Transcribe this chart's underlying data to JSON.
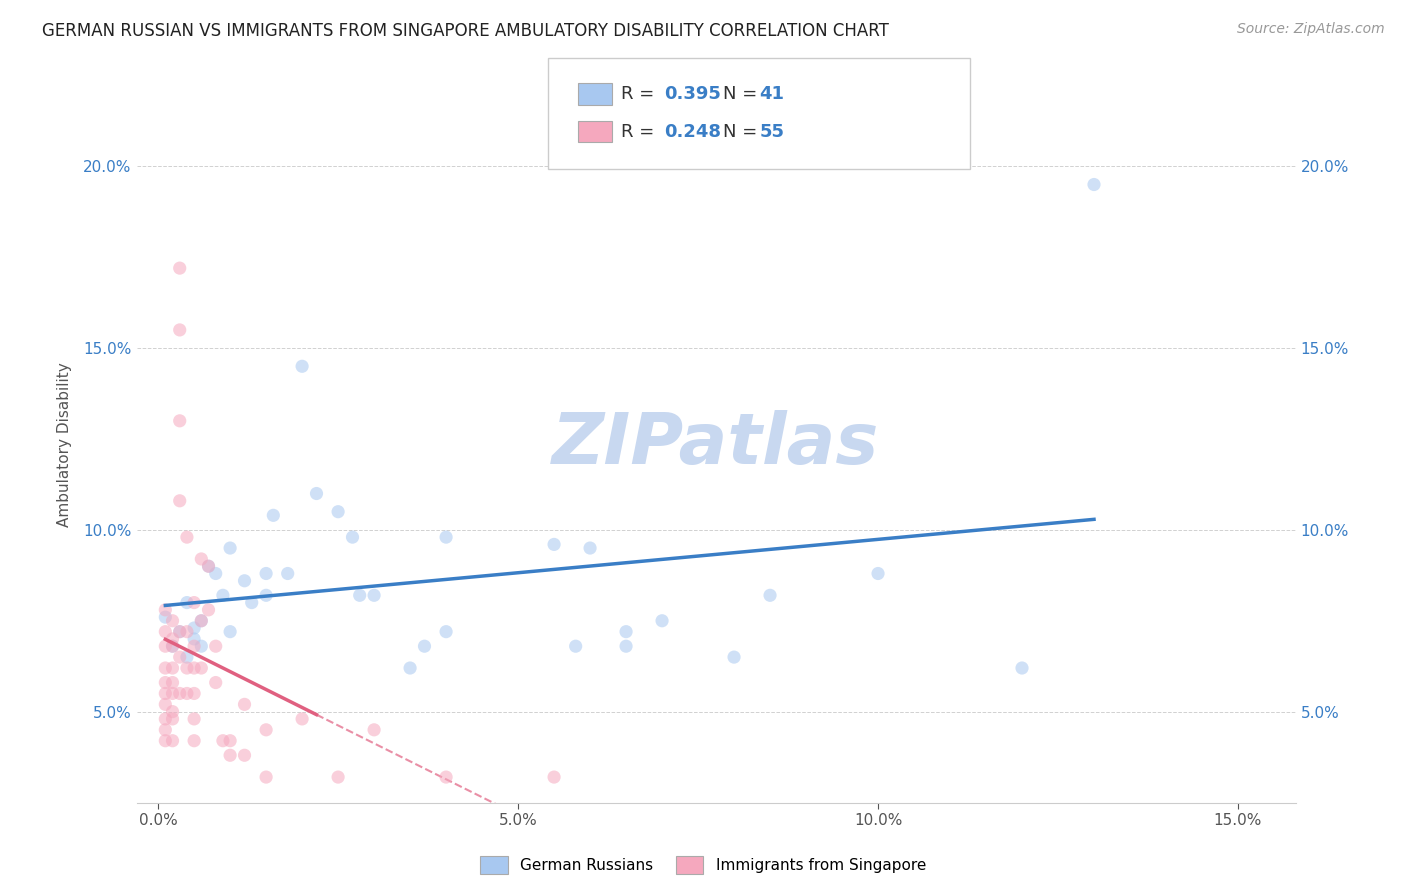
{
  "title": "GERMAN RUSSIAN VS IMMIGRANTS FROM SINGAPORE AMBULATORY DISABILITY CORRELATION CHART",
  "source": "Source: ZipAtlas.com",
  "ylabel": "Ambulatory Disability",
  "xlabel_vals": [
    0.0,
    0.05,
    0.1,
    0.15
  ],
  "ylabel_vals": [
    0.05,
    0.1,
    0.15,
    0.2
  ],
  "xlim": [
    -0.003,
    0.158
  ],
  "ylim": [
    0.025,
    0.222
  ],
  "blue_color": "#A8C8F0",
  "pink_color": "#F5A8BE",
  "blue_line_color": "#3A7EC6",
  "pink_line_color": "#E06080",
  "watermark": "ZIPatlas",
  "watermark_color": "#C8D8F0",
  "legend_label_blue": "German Russians",
  "legend_label_pink": "Immigrants from Singapore",
  "legend_text_color": "#3A7EC6",
  "blue_points": [
    [
      0.001,
      0.076
    ],
    [
      0.002,
      0.068
    ],
    [
      0.003,
      0.072
    ],
    [
      0.004,
      0.065
    ],
    [
      0.004,
      0.08
    ],
    [
      0.005,
      0.07
    ],
    [
      0.005,
      0.073
    ],
    [
      0.006,
      0.068
    ],
    [
      0.006,
      0.075
    ],
    [
      0.007,
      0.09
    ],
    [
      0.008,
      0.088
    ],
    [
      0.009,
      0.082
    ],
    [
      0.01,
      0.095
    ],
    [
      0.01,
      0.072
    ],
    [
      0.012,
      0.086
    ],
    [
      0.013,
      0.08
    ],
    [
      0.015,
      0.088
    ],
    [
      0.015,
      0.082
    ],
    [
      0.016,
      0.104
    ],
    [
      0.018,
      0.088
    ],
    [
      0.02,
      0.145
    ],
    [
      0.022,
      0.11
    ],
    [
      0.025,
      0.105
    ],
    [
      0.027,
      0.098
    ],
    [
      0.028,
      0.082
    ],
    [
      0.03,
      0.082
    ],
    [
      0.035,
      0.062
    ],
    [
      0.037,
      0.068
    ],
    [
      0.04,
      0.098
    ],
    [
      0.04,
      0.072
    ],
    [
      0.055,
      0.096
    ],
    [
      0.058,
      0.068
    ],
    [
      0.06,
      0.095
    ],
    [
      0.065,
      0.072
    ],
    [
      0.065,
      0.068
    ],
    [
      0.07,
      0.075
    ],
    [
      0.08,
      0.065
    ],
    [
      0.085,
      0.082
    ],
    [
      0.1,
      0.088
    ],
    [
      0.12,
      0.062
    ],
    [
      0.13,
      0.195
    ]
  ],
  "pink_points": [
    [
      0.001,
      0.078
    ],
    [
      0.001,
      0.072
    ],
    [
      0.001,
      0.068
    ],
    [
      0.001,
      0.062
    ],
    [
      0.001,
      0.058
    ],
    [
      0.001,
      0.055
    ],
    [
      0.001,
      0.052
    ],
    [
      0.001,
      0.048
    ],
    [
      0.001,
      0.045
    ],
    [
      0.001,
      0.042
    ],
    [
      0.002,
      0.075
    ],
    [
      0.002,
      0.07
    ],
    [
      0.002,
      0.068
    ],
    [
      0.002,
      0.062
    ],
    [
      0.002,
      0.058
    ],
    [
      0.002,
      0.055
    ],
    [
      0.002,
      0.05
    ],
    [
      0.002,
      0.048
    ],
    [
      0.002,
      0.042
    ],
    [
      0.003,
      0.172
    ],
    [
      0.003,
      0.155
    ],
    [
      0.003,
      0.13
    ],
    [
      0.003,
      0.108
    ],
    [
      0.003,
      0.072
    ],
    [
      0.003,
      0.065
    ],
    [
      0.003,
      0.055
    ],
    [
      0.004,
      0.098
    ],
    [
      0.004,
      0.072
    ],
    [
      0.004,
      0.062
    ],
    [
      0.004,
      0.055
    ],
    [
      0.005,
      0.08
    ],
    [
      0.005,
      0.068
    ],
    [
      0.005,
      0.062
    ],
    [
      0.005,
      0.055
    ],
    [
      0.005,
      0.048
    ],
    [
      0.005,
      0.042
    ],
    [
      0.006,
      0.092
    ],
    [
      0.006,
      0.075
    ],
    [
      0.006,
      0.062
    ],
    [
      0.007,
      0.09
    ],
    [
      0.007,
      0.078
    ],
    [
      0.008,
      0.068
    ],
    [
      0.008,
      0.058
    ],
    [
      0.009,
      0.042
    ],
    [
      0.01,
      0.042
    ],
    [
      0.01,
      0.038
    ],
    [
      0.012,
      0.052
    ],
    [
      0.012,
      0.038
    ],
    [
      0.015,
      0.045
    ],
    [
      0.015,
      0.032
    ],
    [
      0.02,
      0.048
    ],
    [
      0.025,
      0.032
    ],
    [
      0.03,
      0.045
    ],
    [
      0.04,
      0.032
    ],
    [
      0.055,
      0.032
    ]
  ],
  "title_fontsize": 12,
  "axis_fontsize": 11,
  "tick_fontsize": 11,
  "source_fontsize": 10,
  "marker_size": 90,
  "marker_alpha": 0.55,
  "line_width": 2.5
}
